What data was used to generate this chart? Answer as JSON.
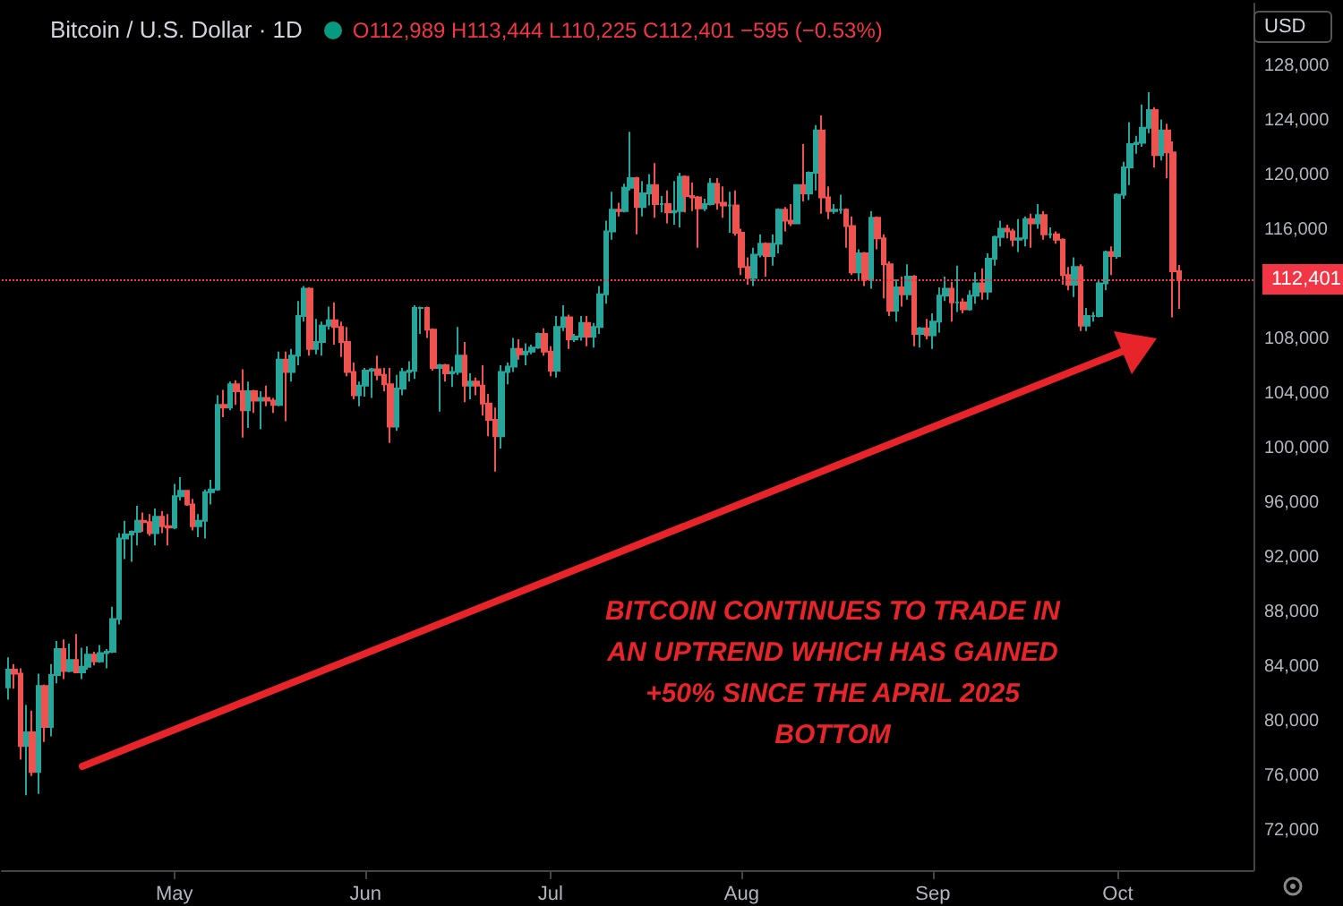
{
  "chart_data": {
    "type": "candlestick",
    "title": "Bitcoin / U.S. Dollar · 1D",
    "subtitle": "O112,989 H113,444 L110,225 C112,401 −595 (−0.53%)",
    "annotations": [
      "BITCOIN CONTINUES TO TRADE IN AN UPTREND WHICH HAS GAINED +50% SINCE THE APRIL 2025 BOTTOM",
      "USD"
    ],
    "x": [
      "2025-04-04",
      "2025-04-05",
      "2025-04-06",
      "2025-04-07",
      "2025-04-08",
      "2025-04-09",
      "2025-04-10",
      "2025-04-11",
      "2025-04-12",
      "2025-04-13",
      "2025-04-14",
      "2025-04-15",
      "2025-04-16",
      "2025-04-17",
      "2025-04-18",
      "2025-04-19",
      "2025-04-20",
      "2025-04-21",
      "2025-04-22",
      "2025-04-23",
      "2025-04-24",
      "2025-04-25",
      "2025-04-26",
      "2025-04-27",
      "2025-04-28",
      "2025-04-29",
      "2025-04-30",
      "2025-05-01",
      "2025-05-02",
      "2025-05-03",
      "2025-05-04",
      "2025-05-05",
      "2025-05-06",
      "2025-05-07",
      "2025-05-08",
      "2025-05-09",
      "2025-05-10",
      "2025-05-11",
      "2025-05-12",
      "2025-05-13",
      "2025-05-14",
      "2025-05-15",
      "2025-05-16",
      "2025-05-17",
      "2025-05-18",
      "2025-05-19",
      "2025-05-20",
      "2025-05-21",
      "2025-05-22",
      "2025-05-23",
      "2025-05-24",
      "2025-05-25",
      "2025-05-26",
      "2025-05-27",
      "2025-05-28",
      "2025-05-29",
      "2025-05-30",
      "2025-05-31",
      "2025-06-01",
      "2025-06-02",
      "2025-06-03",
      "2025-06-04",
      "2025-06-05",
      "2025-06-06",
      "2025-06-07",
      "2025-06-08",
      "2025-06-09",
      "2025-06-10",
      "2025-06-11",
      "2025-06-12",
      "2025-06-13",
      "2025-06-14",
      "2025-06-15",
      "2025-06-16",
      "2025-06-17",
      "2025-06-18",
      "2025-06-19",
      "2025-06-20",
      "2025-06-21",
      "2025-06-22",
      "2025-06-23",
      "2025-06-24",
      "2025-06-25",
      "2025-06-26",
      "2025-06-27",
      "2025-06-28",
      "2025-06-29",
      "2025-06-30",
      "2025-07-01",
      "2025-07-02",
      "2025-07-03",
      "2025-07-04",
      "2025-07-05",
      "2025-07-06",
      "2025-07-07",
      "2025-07-08",
      "2025-07-09",
      "2025-07-10",
      "2025-07-11",
      "2025-07-12",
      "2025-07-13",
      "2025-07-14",
      "2025-07-15",
      "2025-07-16",
      "2025-07-17",
      "2025-07-18",
      "2025-07-19",
      "2025-07-20",
      "2025-07-21",
      "2025-07-22",
      "2025-07-23",
      "2025-07-24",
      "2025-07-25",
      "2025-07-26",
      "2025-07-27",
      "2025-07-28",
      "2025-07-29",
      "2025-07-30",
      "2025-07-31",
      "2025-08-01",
      "2025-08-02",
      "2025-08-03",
      "2025-08-04",
      "2025-08-05",
      "2025-08-06",
      "2025-08-07",
      "2025-08-08",
      "2025-08-09",
      "2025-08-10",
      "2025-08-11",
      "2025-08-12",
      "2025-08-13",
      "2025-08-14",
      "2025-08-15",
      "2025-08-16",
      "2025-08-17",
      "2025-08-18",
      "2025-08-19",
      "2025-08-20",
      "2025-08-21",
      "2025-08-22",
      "2025-08-23",
      "2025-08-24",
      "2025-08-25",
      "2025-08-26",
      "2025-08-27",
      "2025-08-28",
      "2025-08-29",
      "2025-08-30",
      "2025-08-31",
      "2025-09-01",
      "2025-09-02",
      "2025-09-03",
      "2025-09-04",
      "2025-09-05",
      "2025-09-06",
      "2025-09-07",
      "2025-09-08",
      "2025-09-09",
      "2025-09-10",
      "2025-09-11",
      "2025-09-12",
      "2025-09-13",
      "2025-09-14",
      "2025-09-15",
      "2025-09-16",
      "2025-09-17",
      "2025-09-18",
      "2025-09-19",
      "2025-09-20",
      "2025-09-21",
      "2025-09-22",
      "2025-09-23",
      "2025-09-24",
      "2025-09-25",
      "2025-09-26",
      "2025-09-27",
      "2025-09-28",
      "2025-09-29",
      "2025-09-30",
      "2025-10-01",
      "2025-10-02",
      "2025-10-03",
      "2025-10-04",
      "2025-10-05",
      "2025-10-06",
      "2025-10-07",
      "2025-10-08",
      "2025-10-09",
      "2025-10-10",
      "2025-10-11"
    ],
    "ohlc": [
      [
        82500,
        84700,
        81600,
        83800
      ],
      [
        83800,
        84200,
        82400,
        83500
      ],
      [
        83500,
        83900,
        77200,
        78200
      ],
      [
        78200,
        81200,
        74600,
        79200
      ],
      [
        79200,
        80800,
        76000,
        76300
      ],
      [
        76300,
        83500,
        74700,
        82600
      ],
      [
        82600,
        82700,
        78500,
        79600
      ],
      [
        79600,
        84200,
        78900,
        83400
      ],
      [
        83400,
        85900,
        82800,
        85300
      ],
      [
        85300,
        86000,
        83100,
        83700
      ],
      [
        83700,
        85700,
        83600,
        84500
      ],
      [
        84500,
        86400,
        83600,
        83600
      ],
      [
        83600,
        85400,
        83100,
        84000
      ],
      [
        84000,
        85500,
        83800,
        84900
      ],
      [
        84900,
        85100,
        84100,
        84400
      ],
      [
        84400,
        85600,
        84300,
        85000
      ],
      [
        85000,
        85300,
        83900,
        85100
      ],
      [
        85100,
        88400,
        85000,
        87500
      ],
      [
        87500,
        93800,
        87100,
        93400
      ],
      [
        93400,
        94700,
        91900,
        93700
      ],
      [
        93700,
        94000,
        91700,
        93900
      ],
      [
        93900,
        95800,
        92900,
        94700
      ],
      [
        94700,
        95300,
        93900,
        94600
      ],
      [
        94600,
        95200,
        93600,
        93800
      ],
      [
        93800,
        95600,
        92900,
        95000
      ],
      [
        95000,
        95400,
        93800,
        94300
      ],
      [
        94300,
        95200,
        92900,
        94200
      ],
      [
        94200,
        97400,
        94100,
        96500
      ],
      [
        96500,
        97900,
        96200,
        96900
      ],
      [
        96900,
        96900,
        95800,
        95900
      ],
      [
        95900,
        96300,
        94000,
        94300
      ],
      [
        94300,
        95200,
        93500,
        94700
      ],
      [
        94700,
        97000,
        93400,
        96800
      ],
      [
        96800,
        97700,
        95900,
        97000
      ],
      [
        97000,
        103900,
        96900,
        103200
      ],
      [
        103200,
        104300,
        102300,
        103000
      ],
      [
        103000,
        104900,
        102800,
        104700
      ],
      [
        104700,
        105000,
        103200,
        104200
      ],
      [
        104200,
        105800,
        100800,
        102800
      ],
      [
        102800,
        104900,
        101500,
        104200
      ],
      [
        104200,
        104300,
        102600,
        103500
      ],
      [
        103500,
        104200,
        101400,
        103700
      ],
      [
        103700,
        104600,
        103100,
        103500
      ],
      [
        103500,
        103700,
        102600,
        103200
      ],
      [
        103200,
        107100,
        103100,
        106500
      ],
      [
        106500,
        107100,
        102000,
        105600
      ],
      [
        105600,
        107300,
        104900,
        106800
      ],
      [
        106800,
        110800,
        106100,
        109700
      ],
      [
        109700,
        111900,
        109300,
        111700
      ],
      [
        111700,
        111800,
        106800,
        107300
      ],
      [
        107300,
        109500,
        106900,
        107800
      ],
      [
        107800,
        109300,
        106800,
        109000
      ],
      [
        109000,
        110400,
        108700,
        109400
      ],
      [
        109400,
        110700,
        107600,
        108900
      ],
      [
        108900,
        109300,
        106700,
        107800
      ],
      [
        107800,
        108900,
        105300,
        105600
      ],
      [
        105600,
        106300,
        103600,
        103900
      ],
      [
        103900,
        104900,
        103100,
        104600
      ],
      [
        104600,
        105900,
        103800,
        105700
      ],
      [
        105700,
        105900,
        103700,
        105800
      ],
      [
        105800,
        106800,
        105000,
        105400
      ],
      [
        105400,
        105900,
        104200,
        104700
      ],
      [
        104700,
        105900,
        100400,
        101600
      ],
      [
        101600,
        105400,
        101300,
        104400
      ],
      [
        104400,
        105900,
        103900,
        105600
      ],
      [
        105600,
        106400,
        104900,
        105700
      ],
      [
        105700,
        110500,
        105100,
        110300
      ],
      [
        110300,
        110400,
        108400,
        110300
      ],
      [
        110300,
        110400,
        108100,
        108700
      ],
      [
        108700,
        108800,
        105700,
        105900
      ],
      [
        105900,
        106200,
        102700,
        106100
      ],
      [
        106100,
        106200,
        104900,
        105500
      ],
      [
        105500,
        106000,
        104500,
        105600
      ],
      [
        105600,
        108900,
        105400,
        106800
      ],
      [
        106800,
        107800,
        103400,
        104600
      ],
      [
        104600,
        105500,
        103600,
        104900
      ],
      [
        104900,
        105200,
        103900,
        104600
      ],
      [
        104600,
        106100,
        102400,
        103300
      ],
      [
        103300,
        104000,
        100900,
        102100
      ],
      [
        102100,
        103000,
        98300,
        100900
      ],
      [
        100900,
        106100,
        100000,
        105600
      ],
      [
        105600,
        106300,
        104700,
        106000
      ],
      [
        106000,
        108100,
        105600,
        107300
      ],
      [
        107300,
        108000,
        106500,
        106900
      ],
      [
        106900,
        107700,
        106100,
        107100
      ],
      [
        107100,
        107600,
        106900,
        107400
      ],
      [
        107400,
        108500,
        107300,
        108400
      ],
      [
        108400,
        108800,
        106800,
        107100
      ],
      [
        107100,
        107500,
        105300,
        105700
      ],
      [
        105700,
        109700,
        105200,
        108900
      ],
      [
        108900,
        110500,
        108600,
        109600
      ],
      [
        109600,
        109800,
        107300,
        108000
      ],
      [
        108000,
        108400,
        107800,
        108200
      ],
      [
        108200,
        109700,
        107900,
        109200
      ],
      [
        109200,
        109700,
        107500,
        108200
      ],
      [
        108200,
        109200,
        107400,
        108900
      ],
      [
        108900,
        111900,
        108400,
        111300
      ],
      [
        111300,
        116700,
        110600,
        115900
      ],
      [
        115900,
        118800,
        115300,
        117500
      ],
      [
        117500,
        118000,
        117000,
        117400
      ],
      [
        117400,
        119400,
        117300,
        119100
      ],
      [
        119100,
        123200,
        118900,
        119800
      ],
      [
        119800,
        119900,
        115700,
        117700
      ],
      [
        117700,
        119600,
        117000,
        118700
      ],
      [
        118700,
        120100,
        117800,
        119300
      ],
      [
        119300,
        120900,
        116900,
        117900
      ],
      [
        117900,
        118500,
        117300,
        117900
      ],
      [
        117900,
        118900,
        116500,
        117300
      ],
      [
        117300,
        119600,
        116400,
        117400
      ],
      [
        117400,
        120200,
        116200,
        119900
      ],
      [
        119900,
        120000,
        117300,
        118500
      ],
      [
        118500,
        119500,
        117400,
        118400
      ],
      [
        118400,
        118500,
        114700,
        117600
      ],
      [
        117600,
        118300,
        117400,
        117900
      ],
      [
        117900,
        119800,
        117800,
        119400
      ],
      [
        119400,
        119800,
        117500,
        118000
      ],
      [
        118000,
        119200,
        116900,
        117800
      ],
      [
        117800,
        118800,
        115800,
        117800
      ],
      [
        117800,
        118900,
        115600,
        115800
      ],
      [
        115800,
        116100,
        112700,
        113300
      ],
      [
        113300,
        114000,
        112000,
        112500
      ],
      [
        112500,
        114700,
        111900,
        114200
      ],
      [
        114200,
        115700,
        114000,
        115000
      ],
      [
        115000,
        115100,
        112600,
        114100
      ],
      [
        114100,
        115700,
        113400,
        115000
      ],
      [
        115000,
        117600,
        114300,
        117500
      ],
      [
        117500,
        117700,
        115900,
        116700
      ],
      [
        116700,
        117900,
        116300,
        116500
      ],
      [
        116500,
        119300,
        116500,
        119300
      ],
      [
        119300,
        122300,
        118100,
        118700
      ],
      [
        118700,
        120300,
        118200,
        120200
      ],
      [
        120200,
        123700,
        118900,
        123300
      ],
      [
        123300,
        124400,
        117200,
        118400
      ],
      [
        118400,
        119200,
        116800,
        117400
      ],
      [
        117400,
        117900,
        117200,
        117500
      ],
      [
        117500,
        118600,
        117200,
        117500
      ],
      [
        117500,
        117600,
        114700,
        116300
      ],
      [
        116300,
        117000,
        112700,
        112900
      ],
      [
        112900,
        114600,
        112400,
        114300
      ],
      [
        114300,
        114400,
        111900,
        112400
      ],
      [
        112400,
        117400,
        111700,
        116900
      ],
      [
        116900,
        117000,
        114600,
        115400
      ],
      [
        115400,
        115700,
        111000,
        113500
      ],
      [
        113500,
        113700,
        109700,
        110100
      ],
      [
        110100,
        112400,
        109300,
        111800
      ],
      [
        111800,
        112600,
        110400,
        111300
      ],
      [
        111300,
        113500,
        110900,
        112600
      ],
      [
        112600,
        112700,
        107500,
        108400
      ],
      [
        108400,
        108900,
        107400,
        108800
      ],
      [
        108800,
        109500,
        108000,
        108300
      ],
      [
        108300,
        109900,
        107300,
        109300
      ],
      [
        109300,
        111800,
        108500,
        111200
      ],
      [
        111200,
        112600,
        110800,
        111700
      ],
      [
        111700,
        112200,
        109300,
        110700
      ],
      [
        110700,
        113400,
        110000,
        110700
      ],
      [
        110700,
        111000,
        109900,
        110200
      ],
      [
        110200,
        111600,
        110100,
        111200
      ],
      [
        111200,
        112900,
        110600,
        112100
      ],
      [
        112100,
        113200,
        110900,
        111500
      ],
      [
        111500,
        114300,
        110900,
        113900
      ],
      [
        113900,
        115600,
        113400,
        115500
      ],
      [
        115500,
        116700,
        114800,
        116100
      ],
      [
        116100,
        116400,
        115400,
        115900
      ],
      [
        115900,
        116100,
        114800,
        115300
      ],
      [
        115300,
        116800,
        114400,
        115400
      ],
      [
        115400,
        117000,
        114800,
        116800
      ],
      [
        116800,
        117200,
        114700,
        116500
      ],
      [
        116500,
        117900,
        116100,
        117100
      ],
      [
        117100,
        117400,
        115300,
        115700
      ],
      [
        115700,
        116200,
        115400,
        115700
      ],
      [
        115700,
        115900,
        115000,
        115300
      ],
      [
        115300,
        115400,
        112000,
        112700
      ],
      [
        112700,
        113300,
        111600,
        112000
      ],
      [
        112000,
        114000,
        111100,
        113300
      ],
      [
        113300,
        113500,
        108600,
        109000
      ],
      [
        109000,
        110300,
        108600,
        109700
      ],
      [
        109700,
        110000,
        109300,
        109700
      ],
      [
        109700,
        112300,
        109600,
        112100
      ],
      [
        112100,
        114500,
        111600,
        114400
      ],
      [
        114400,
        114800,
        112700,
        114100
      ],
      [
        114100,
        118700,
        113900,
        118600
      ],
      [
        118600,
        121000,
        118300,
        120600
      ],
      [
        120600,
        123900,
        119300,
        122300
      ],
      [
        122300,
        122900,
        121600,
        122400
      ],
      [
        122400,
        125200,
        122100,
        123500
      ],
      [
        123500,
        126100,
        123100,
        124800
      ],
      [
        124800,
        125000,
        120600,
        121500
      ],
      [
        121500,
        124100,
        121100,
        123300
      ],
      [
        123300,
        123800,
        119800,
        121700
      ],
      [
        121700,
        122500,
        109600,
        112989
      ],
      [
        112989,
        113444,
        110225,
        112401
      ]
    ],
    "xlim": [
      "2025-04-03",
      "2025-10-23"
    ],
    "xticks": [
      {
        "value": "2025-05-01",
        "label": "May"
      },
      {
        "value": "2025-06-01",
        "label": "Jun"
      },
      {
        "value": "2025-07-01",
        "label": "Jul"
      },
      {
        "value": "2025-08-01",
        "label": "Aug"
      },
      {
        "value": "2025-09-01",
        "label": "Sep"
      },
      {
        "value": "2025-10-01",
        "label": "Oct"
      }
    ],
    "ylim": [
      69100,
      132600
    ],
    "yticks": [
      {
        "value": 72000,
        "label": "72,000"
      },
      {
        "value": 76000,
        "label": "76,000"
      },
      {
        "value": 80000,
        "label": "80,000"
      },
      {
        "value": 84000,
        "label": "84,000"
      },
      {
        "value": 88000,
        "label": "88,000"
      },
      {
        "value": 92000,
        "label": "92,000"
      },
      {
        "value": 96000,
        "label": "96,000"
      },
      {
        "value": 100000,
        "label": "100,000"
      },
      {
        "value": 104000,
        "label": "104,000"
      },
      {
        "value": 108000,
        "label": "108,000"
      },
      {
        "value": 116000,
        "label": "116,000"
      },
      {
        "value": 120000,
        "label": "120,000"
      },
      {
        "value": 124000,
        "label": "124,000"
      },
      {
        "value": 128000,
        "label": "128,000"
      }
    ],
    "ref_lines": [
      {
        "axis": "y",
        "value": 112401,
        "label": "112,401",
        "color": "#f23645",
        "line_style": "dotted"
      }
    ],
    "grid": false
  }
}
